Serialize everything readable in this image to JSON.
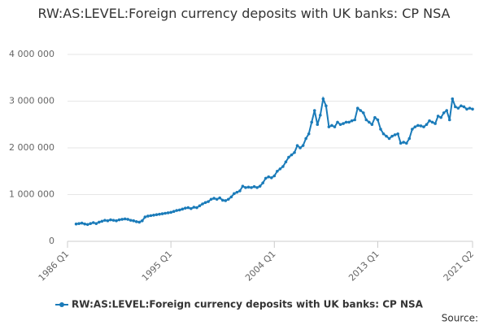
{
  "chart_data": {
    "type": "line",
    "title": "RW:AS:LEVEL:Foreign currency deposits with UK banks: CP NSA",
    "source": "Source:",
    "categories": [
      "1986 Q1",
      null,
      null,
      null,
      null,
      null,
      null,
      null,
      null,
      null,
      null,
      null,
      null,
      null,
      null,
      null,
      null,
      null,
      null,
      null,
      null,
      null,
      null,
      null,
      null,
      null,
      null,
      null,
      null,
      null,
      null,
      null,
      null,
      null,
      null,
      null,
      "1995 Q1",
      null,
      null,
      null,
      null,
      null,
      null,
      null,
      null,
      null,
      null,
      null,
      null,
      null,
      null,
      null,
      null,
      null,
      null,
      null,
      null,
      null,
      null,
      null,
      null,
      null,
      null,
      null,
      null,
      null,
      null,
      null,
      null,
      null,
      null,
      null,
      "2004 Q1",
      null,
      null,
      null,
      null,
      null,
      null,
      null,
      null,
      null,
      null,
      null,
      null,
      null,
      null,
      null,
      null,
      null,
      null,
      null,
      null,
      null,
      null,
      null,
      null,
      null,
      null,
      null,
      null,
      null,
      null,
      null,
      null,
      null,
      null,
      null,
      "2013 Q1",
      null,
      null,
      null,
      null,
      null,
      null,
      null,
      null,
      null,
      null,
      null,
      null,
      null,
      null,
      null,
      null,
      null,
      null,
      null,
      null,
      null,
      null,
      null,
      null,
      null,
      null,
      null,
      null,
      null,
      null,
      null,
      null,
      "2021 Q2"
    ],
    "series": [
      {
        "name": "RW:AS:LEVEL:Foreign currency deposits with UK banks: CP NSA",
        "color": "#1a7bb9",
        "values": [
          null,
          null,
          null,
          370000,
          380000,
          390000,
          370000,
          360000,
          380000,
          400000,
          380000,
          410000,
          430000,
          450000,
          440000,
          460000,
          450000,
          440000,
          460000,
          470000,
          480000,
          470000,
          450000,
          440000,
          420000,
          410000,
          440000,
          520000,
          540000,
          550000,
          560000,
          570000,
          580000,
          590000,
          600000,
          610000,
          620000,
          640000,
          660000,
          670000,
          690000,
          710000,
          720000,
          700000,
          730000,
          720000,
          760000,
          800000,
          830000,
          850000,
          900000,
          920000,
          900000,
          930000,
          880000,
          870000,
          900000,
          950000,
          1020000,
          1050000,
          1080000,
          1180000,
          1150000,
          1160000,
          1150000,
          1170000,
          1150000,
          1180000,
          1250000,
          1350000,
          1380000,
          1360000,
          1400000,
          1500000,
          1550000,
          1600000,
          1700000,
          1800000,
          1850000,
          1900000,
          2050000,
          2000000,
          2050000,
          2200000,
          2300000,
          2550000,
          2800000,
          2500000,
          2700000,
          3050000,
          2900000,
          2450000,
          2480000,
          2450000,
          2550000,
          2500000,
          2520000,
          2550000,
          2550000,
          2580000,
          2600000,
          2850000,
          2800000,
          2750000,
          2600000,
          2550000,
          2500000,
          2650000,
          2600000,
          2400000,
          2300000,
          2250000,
          2200000,
          2250000,
          2280000,
          2300000,
          2100000,
          2120000,
          2100000,
          2200000,
          2400000,
          2450000,
          2480000,
          2470000,
          2450000,
          2500000,
          2580000,
          2550000,
          2520000,
          2680000,
          2650000,
          2750000,
          2800000,
          2600000,
          3050000,
          2880000,
          2850000,
          2900000,
          2880000,
          2830000,
          2850000,
          2830000
        ]
      }
    ],
    "ylim": [
      0,
      4000000
    ],
    "yticks": [
      0,
      {
        "value": 1000000,
        "label": "1 000 000"
      },
      {
        "value": 2000000,
        "label": "2 000 000"
      },
      {
        "value": 3000000,
        "label": "3 000 000"
      },
      {
        "value": 4000000,
        "label": "4 000 000"
      }
    ],
    "grid": true
  }
}
